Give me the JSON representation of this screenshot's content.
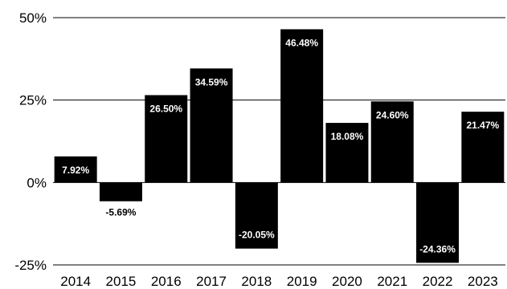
{
  "chart_data": {
    "type": "bar",
    "title": "",
    "xlabel": "",
    "ylabel": "",
    "categories": [
      "2014",
      "2015",
      "2016",
      "2017",
      "2018",
      "2019",
      "2020",
      "2021",
      "2022",
      "2023"
    ],
    "values": [
      7.92,
      -5.69,
      26.5,
      34.59,
      -20.05,
      46.48,
      18.08,
      24.6,
      -24.36,
      21.47
    ],
    "value_labels": [
      "7.92%",
      "-5.69%",
      "26.50%",
      "34.59%",
      "-20.05%",
      "46.48%",
      "18.08%",
      "24.60%",
      "-24.36%",
      "21.47%"
    ],
    "ylim": [
      -25,
      50
    ],
    "yticks": [
      50,
      25,
      0,
      -25
    ],
    "ytick_labels": [
      "50%",
      "25%",
      "0%",
      "-25%"
    ],
    "grid": "horizontal",
    "legend": "none",
    "bar_color": "#000000",
    "label_color_inside": "#ffffff",
    "label_color_outside": "#000000"
  }
}
